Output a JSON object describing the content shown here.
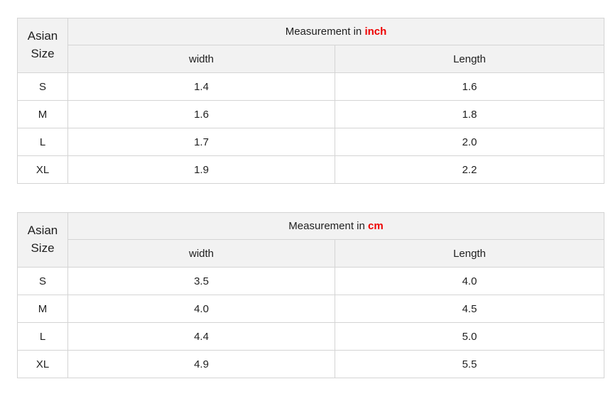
{
  "colors": {
    "header_bg": "#f2f2f2",
    "border": "#d4d4d4",
    "text": "#1f1f1f",
    "accent_red": "#ee0000",
    "page_bg": "#ffffff"
  },
  "tables": [
    {
      "corner_label": "Asian Size",
      "header_prefix": "Measurement in",
      "header_unit": "inch",
      "columns": [
        "width",
        "Length"
      ],
      "rows": [
        {
          "size": "S",
          "width": "1.4",
          "length": "1.6"
        },
        {
          "size": "M",
          "width": "1.6",
          "length": "1.8"
        },
        {
          "size": "L",
          "width": "1.7",
          "length": "2.0"
        },
        {
          "size": "XL",
          "width": "1.9",
          "length": "2.2"
        }
      ]
    },
    {
      "corner_label": "Asian Size",
      "header_prefix": "Measurement in",
      "header_unit": "cm",
      "columns": [
        "width",
        "Length"
      ],
      "rows": [
        {
          "size": "S",
          "width": "3.5",
          "length": "4.0"
        },
        {
          "size": "M",
          "width": "4.0",
          "length": "4.5"
        },
        {
          "size": "L",
          "width": "4.4",
          "length": "5.0"
        },
        {
          "size": "XL",
          "width": "4.9",
          "length": "5.5"
        }
      ]
    }
  ],
  "chart_data": [
    {
      "type": "table",
      "title": "Measurement in inch",
      "columns": [
        "Asian Size",
        "width",
        "Length"
      ],
      "rows": [
        [
          "S",
          "1.4",
          "1.6"
        ],
        [
          "M",
          "1.6",
          "1.8"
        ],
        [
          "L",
          "1.7",
          "2.0"
        ],
        [
          "XL",
          "1.9",
          "2.2"
        ]
      ]
    },
    {
      "type": "table",
      "title": "Measurement in cm",
      "columns": [
        "Asian Size",
        "width",
        "Length"
      ],
      "rows": [
        [
          "S",
          "3.5",
          "4.0"
        ],
        [
          "M",
          "4.0",
          "4.5"
        ],
        [
          "L",
          "4.4",
          "5.0"
        ],
        [
          "XL",
          "4.9",
          "5.5"
        ]
      ]
    }
  ]
}
